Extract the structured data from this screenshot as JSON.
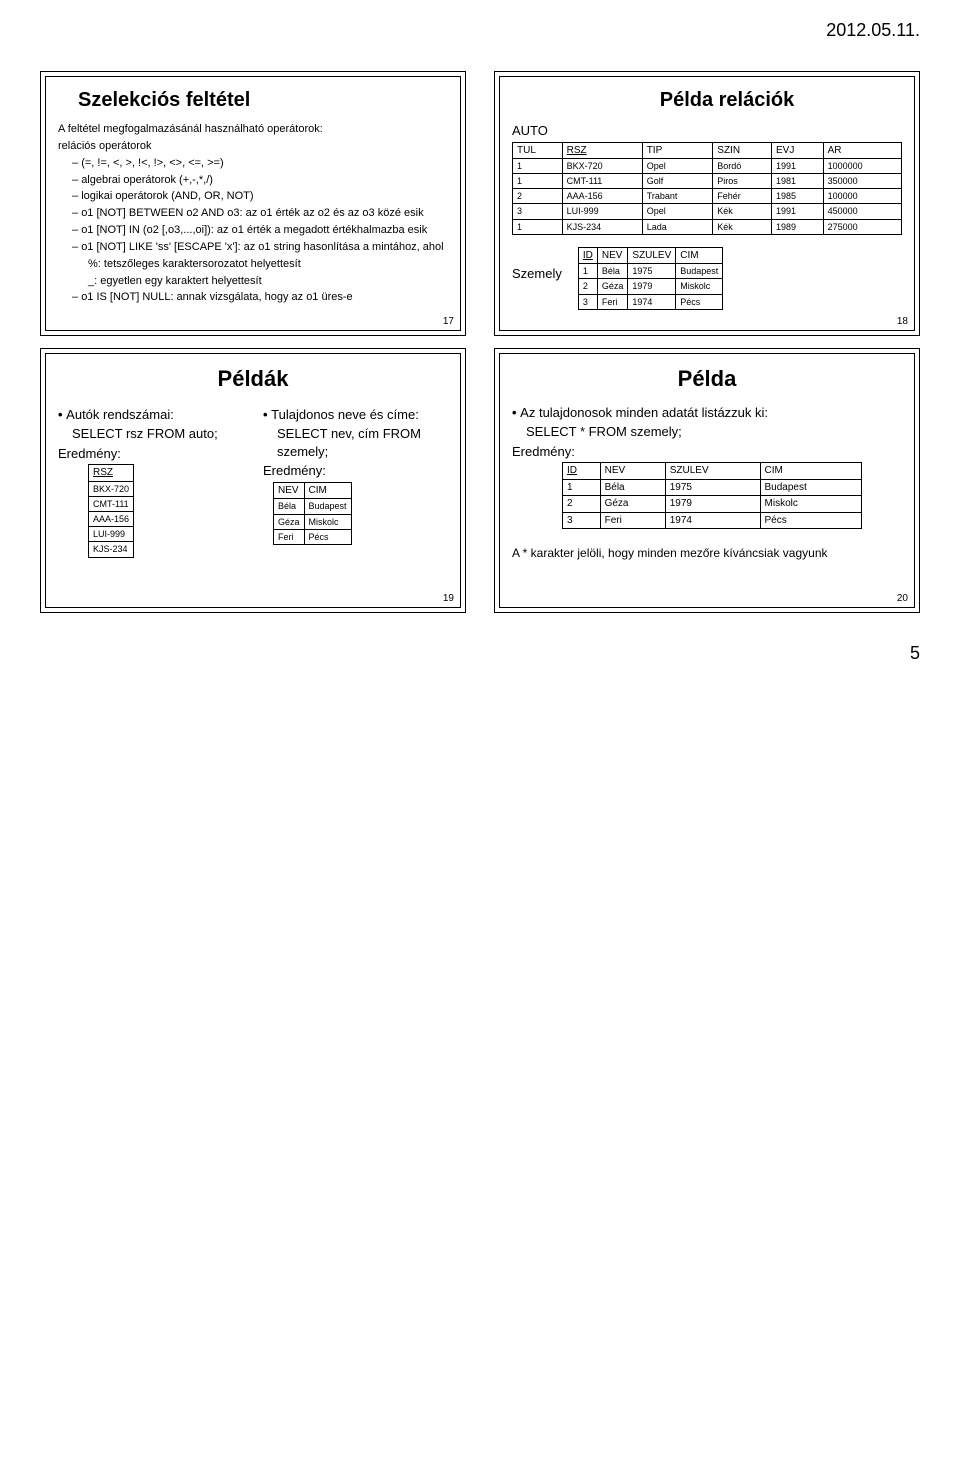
{
  "header_date": "2012.05.11.",
  "page_number_bottom": "5",
  "slide17": {
    "title": "Szelekciós feltétel",
    "intro": "A feltétel megfogalmazásánál használható operátorok:",
    "bullet_rel": "relációs operátorok",
    "rel_ops": "(=, !=, <, >, !<, !>, <>, <=, >=)",
    "alg": "algebrai operátorok (+,-,*,/)",
    "log": "logikai operátorok (AND, OR, NOT)",
    "between": "o1 [NOT] BETWEEN o2 AND o3:  az o1 érték az o2 és az o3 közé esik",
    "in": "o1 [NOT] IN (o2 [,o3,...,oi]):  az o1 érték a megadott értékhalmazba esik",
    "like": "o1 [NOT] LIKE 'ss' [ESCAPE 'x']:  az o1 string hasonlítása a mintához, ahol",
    "pct": "%: tetszőleges karaktersorozatot helyettesít",
    "usc": "_: egyetlen egy karaktert helyettesít",
    "isnull": "o1 IS [NOT] NULL: annak vizsgálata, hogy az o1 üres-e",
    "num": "17"
  },
  "slide18": {
    "title": "Példa relációk",
    "auto_label": "AUTO",
    "szemely_label": "Szemely",
    "auto_cols": [
      "TUL",
      "RSZ",
      "TIP",
      "SZIN",
      "EVJ",
      "AR"
    ],
    "auto_rows": [
      [
        "1",
        "BKX-720",
        "Opel",
        "Bordó",
        "1991",
        "1000000"
      ],
      [
        "1",
        "CMT-111",
        "Golf",
        "Piros",
        "1981",
        "350000"
      ],
      [
        "2",
        "AAA-156",
        "Trabant",
        "Fehér",
        "1985",
        "100000"
      ],
      [
        "3",
        "LUI-999",
        "Opel",
        "Kék",
        "1991",
        "450000"
      ],
      [
        "1",
        "KJS-234",
        "Lada",
        "Kék",
        "1989",
        "275000"
      ]
    ],
    "szemely_cols": [
      "ID",
      "NEV",
      "SZULEV",
      "CIM"
    ],
    "szemely_rows": [
      [
        "1",
        "Béla",
        "1975",
        "Budapest"
      ],
      [
        "2",
        "Géza",
        "1979",
        "Miskolc"
      ],
      [
        "3",
        "Feri",
        "1974",
        "Pécs"
      ]
    ],
    "num": "18"
  },
  "slide19": {
    "title": "Példák",
    "left_label": "Autók rendszámai:",
    "left_sql": "SELECT rsz FROM auto;",
    "left_result_label": "Eredmény:",
    "rsz_header": "RSZ",
    "rsz_rows": [
      "BKX-720",
      "CMT-111",
      "AAA-156",
      "LUI-999",
      "KJS-234"
    ],
    "right_label": "Tulajdonos neve és címe:",
    "right_sql": "SELECT nev, cím FROM szemely;",
    "right_result_label": "Eredmény:",
    "nc_cols": [
      "NEV",
      "CIM"
    ],
    "nc_rows": [
      [
        "Béla",
        "Budapest"
      ],
      [
        "Géza",
        "Miskolc"
      ],
      [
        "Feri",
        "Pécs"
      ]
    ],
    "num": "19"
  },
  "slide20": {
    "title": "Példa",
    "line1": "Az tulajdonosok minden adatát listázzuk ki:",
    "sql": "SELECT  *  FROM szemely;",
    "result_label": "Eredmény:",
    "cols": [
      "ID",
      "NEV",
      "SZULEV",
      "CIM"
    ],
    "rows": [
      [
        "1",
        "Béla",
        "1975",
        "Budapest"
      ],
      [
        "2",
        "Géza",
        "1979",
        "Miskolc"
      ],
      [
        "3",
        "Feri",
        "1974",
        "Pécs"
      ]
    ],
    "footer": "A * karakter jelöli, hogy minden mezőre kíváncsiak vagyunk",
    "num": "20"
  }
}
